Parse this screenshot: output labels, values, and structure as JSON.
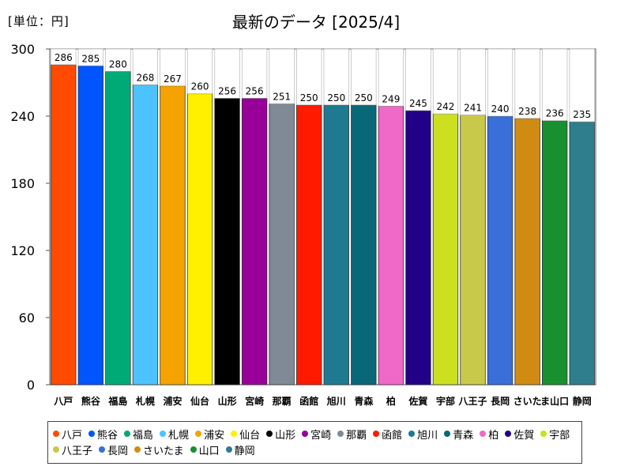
{
  "unit_label": "[単位：円]",
  "title": "最新のデータ [2025/4]",
  "chart_data": {
    "type": "bar",
    "title": "最新のデータ [2025/4]",
    "unit": "[単位：円]",
    "categories": [
      "八戸",
      "熊谷",
      "福島",
      "札幌",
      "浦安",
      "仙台",
      "山形",
      "宮崎",
      "那覇",
      "函館",
      "旭川",
      "青森",
      "柏",
      "佐賀",
      "宇部",
      "八王子",
      "長岡",
      "さいたま",
      "山口",
      "静岡"
    ],
    "tick_labels": [
      "八戸",
      "熊谷",
      "福島",
      "札幌",
      "浦安",
      "仙台",
      "山形",
      "宮崎",
      "那覇",
      "函館",
      "旭川",
      "青森",
      "柏",
      "佐賀",
      "宇部",
      "八王子",
      "長岡",
      "さいた",
      "ま山口",
      "静岡"
    ],
    "values": [
      286,
      285,
      280,
      268,
      267,
      260,
      256,
      256,
      251,
      250,
      250,
      250,
      249,
      245,
      242,
      241,
      240,
      238,
      236,
      235
    ],
    "colors": [
      "#ff4a00",
      "#0055ff",
      "#00aa77",
      "#4cc3ff",
      "#f5a300",
      "#fff000",
      "#000000",
      "#990099",
      "#808a96",
      "#ff1a00",
      "#1e7a90",
      "#086878",
      "#f068c8",
      "#220088",
      "#cce020",
      "#c8c84a",
      "#3a6ed8",
      "#d08c12",
      "#189030",
      "#2e7e8e"
    ],
    "ylim": [
      0,
      300
    ],
    "yticks": [
      0,
      60,
      120,
      180,
      240,
      300
    ],
    "grid": false,
    "legend_position": "bottom"
  }
}
